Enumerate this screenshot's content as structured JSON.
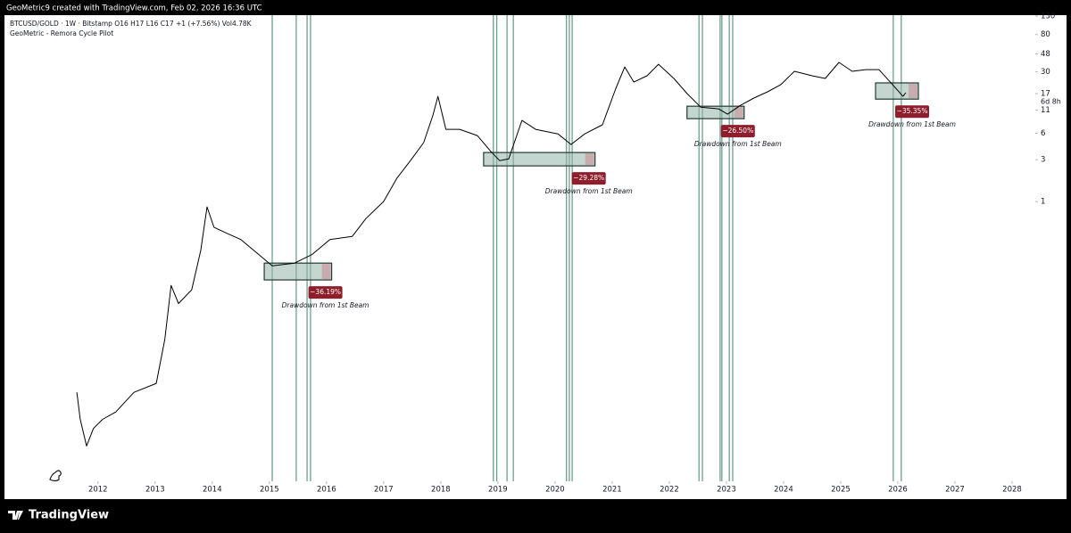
{
  "chart_data": {
    "type": "line",
    "title": "GeoMetric9 created with TradingView.com, Feb 02, 2026 16:36 UTC",
    "subtitle": "BTCUSD/GOLD · 1W · Bitstamp  O16  H17  L16  C17  +1 (+7.56%)  Vol4.78K",
    "indicator": "GeoMetric - Remora Cycle Pilot",
    "countdown": "6d 8h",
    "brand": "TradingView",
    "log_scale": true,
    "grid": false,
    "xlim": [
      2010.41,
      2028.25
    ],
    "xticks": [
      2012,
      2013,
      2014,
      2015,
      2016,
      2017,
      2018,
      2019,
      2020,
      2021,
      2022,
      2023,
      2024,
      2025,
      2026,
      2027,
      2028
    ],
    "ylim": [
      0.00065,
      133
    ],
    "yticks": [
      130,
      80,
      48,
      30,
      17,
      11,
      6,
      3,
      1
    ],
    "x": [
      2011.63,
      2011.69,
      2011.8,
      2011.92,
      2012.08,
      2012.31,
      2012.63,
      2013.02,
      2013.17,
      2013.28,
      2013.41,
      2013.64,
      2013.8,
      2013.91,
      2014.03,
      2014.27,
      2014.5,
      2014.81,
      2015.05,
      2015.44,
      2015.75,
      2016.06,
      2016.45,
      2016.69,
      2017.0,
      2017.23,
      2017.47,
      2017.7,
      2017.86,
      2017.95,
      2018.09,
      2018.33,
      2018.64,
      2018.88,
      2019.03,
      2019.19,
      2019.42,
      2019.66,
      2020.05,
      2020.28,
      2020.52,
      2020.83,
      2021.06,
      2021.22,
      2021.38,
      2021.61,
      2021.81,
      2022.08,
      2022.31,
      2022.55,
      2022.86,
      2023.02,
      2023.25,
      2023.48,
      2023.72,
      2023.95,
      2024.19,
      2024.5,
      2024.73,
      2024.97,
      2025.2,
      2025.44,
      2025.67,
      2025.91,
      2026.09,
      2026.14
    ],
    "series": [
      {
        "name": "BTCUSD/GOLD",
        "color": "#000000",
        "values": [
          0.0067,
          0.0033,
          0.00164,
          0.0026,
          0.0033,
          0.004,
          0.0067,
          0.0085,
          0.027,
          0.111,
          0.069,
          0.099,
          0.28,
          0.87,
          0.51,
          0.43,
          0.37,
          0.25,
          0.185,
          0.199,
          0.25,
          0.37,
          0.4,
          0.64,
          1.0,
          1.84,
          2.93,
          4.7,
          9.5,
          15.8,
          6.65,
          6.65,
          5.65,
          3.7,
          2.93,
          3.07,
          8.4,
          6.65,
          5.9,
          4.47,
          5.9,
          7.5,
          19.1,
          34.2,
          23,
          27.1,
          36.7,
          25.3,
          17,
          11.9,
          11.4,
          9.9,
          12.5,
          15.1,
          17.8,
          21.4,
          30.5,
          27.1,
          25.3,
          38.5,
          30.5,
          31.9,
          31.9,
          21.4,
          15.8,
          17.4
        ]
      }
    ],
    "beam_color": "#6f9f8c",
    "beams": [
      2015.05,
      2015.47,
      2015.66,
      2015.72,
      2018.92,
      2018.98,
      2019.16,
      2019.27,
      2020.2,
      2020.25,
      2020.3,
      2022.52,
      2022.58,
      2022.89,
      2022.92,
      2023.05,
      2023.11,
      2025.92,
      2026.06
    ],
    "boxes": [
      {
        "x": [
          2014.91,
          2016.09
        ],
        "y": [
          0.128,
          0.199
        ],
        "label": "−36.19%",
        "note": "Drawdown from 1st Beam"
      },
      {
        "x": [
          2018.75,
          2020.7
        ],
        "y": [
          2.55,
          3.62
        ],
        "label": "−29.28%",
        "note": "Drawdown from 1st Beam"
      },
      {
        "x": [
          2022.31,
          2023.31
        ],
        "y": [
          8.8,
          12.2
        ],
        "label": "−26.50%",
        "note": "Drawdown from 1st Beam"
      },
      {
        "x": [
          2025.61,
          2026.36
        ],
        "y": [
          14.7,
          22.5
        ],
        "label": "−35.35%",
        "note": "Drawdown from 1st Beam"
      }
    ]
  }
}
